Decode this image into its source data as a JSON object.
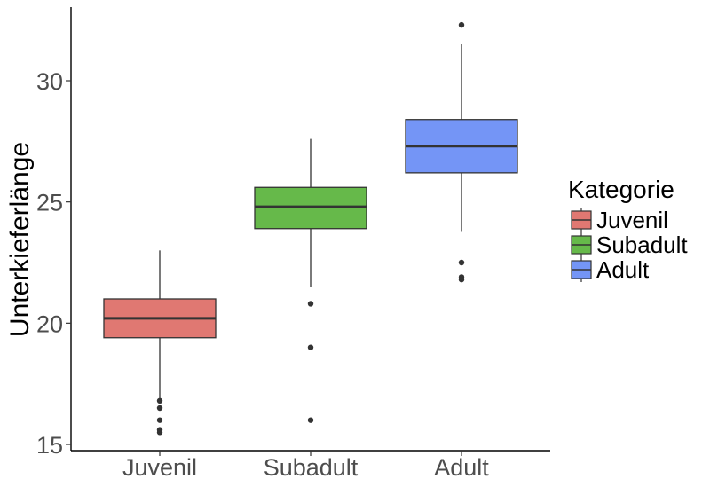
{
  "chart_data": {
    "type": "box",
    "title": "",
    "xlabel": "",
    "ylabel": "Unterkieferlänge",
    "ylim": [
      15,
      33
    ],
    "yticks": [
      15,
      20,
      25,
      30
    ],
    "grid": false,
    "legend": {
      "title": "Kategorie",
      "position": "right"
    },
    "categories": [
      "Juvenil",
      "Subadult",
      "Adult"
    ],
    "series": [
      {
        "name": "Juvenil",
        "color": "#e07872",
        "min": 16.9,
        "q1": 19.4,
        "median": 20.2,
        "q3": 21.0,
        "max": 23.0,
        "outliers": [
          16.8,
          16.5,
          16.0,
          15.6,
          15.5
        ]
      },
      {
        "name": "Subadult",
        "color": "#66b94a",
        "min": 21.5,
        "q1": 23.9,
        "median": 24.8,
        "q3": 25.6,
        "max": 27.6,
        "outliers": [
          20.8,
          19.0,
          16.0
        ]
      },
      {
        "name": "Adult",
        "color": "#7495f6",
        "min": 23.8,
        "q1": 26.2,
        "median": 27.3,
        "q3": 28.4,
        "max": 31.5,
        "outliers": [
          32.3,
          22.5,
          21.9,
          21.8
        ]
      }
    ]
  }
}
